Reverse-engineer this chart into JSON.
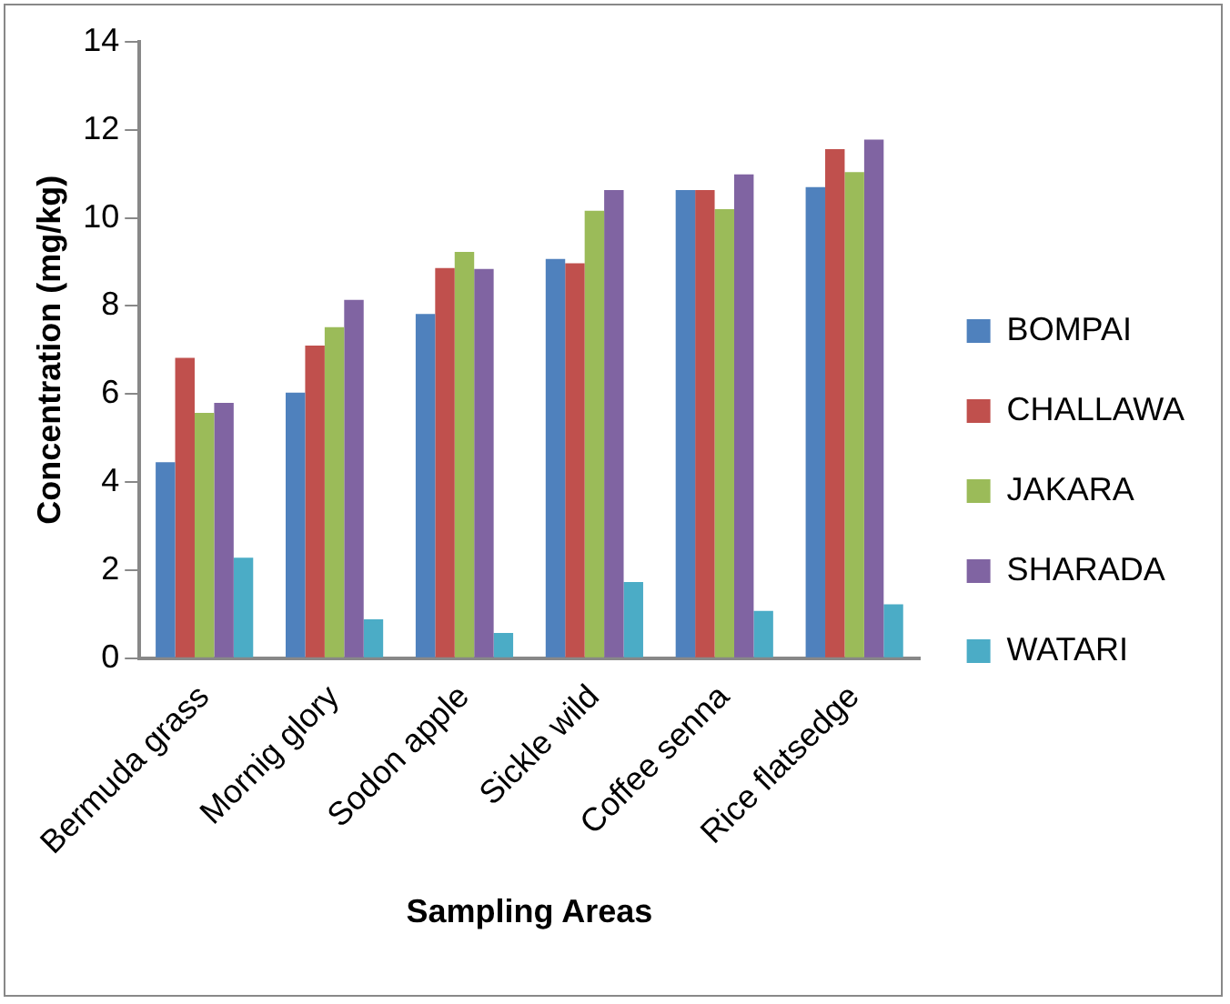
{
  "chart_data": {
    "type": "bar",
    "xlabel": "Sampling Areas",
    "ylabel": "Concentration (mg/kg)",
    "categories": [
      "Bermuda grass",
      "Mornig glory",
      "Sodon apple",
      "Sickle wild",
      "Coffee senna",
      "Rice flatsedge"
    ],
    "series": [
      {
        "name": "BOMPAI",
        "color": "#4f81bd",
        "values": [
          4.45,
          6.03,
          7.82,
          9.07,
          10.63,
          10.7
        ]
      },
      {
        "name": "CHALLAWA",
        "color": "#c0504d",
        "values": [
          6.82,
          7.1,
          8.86,
          8.97,
          10.63,
          11.56
        ]
      },
      {
        "name": "JAKARA",
        "color": "#9bbb59",
        "values": [
          5.57,
          7.52,
          9.23,
          10.16,
          10.2,
          11.04
        ]
      },
      {
        "name": "SHARADA",
        "color": "#8064a2",
        "values": [
          5.8,
          8.14,
          8.84,
          10.63,
          10.99,
          11.78
        ]
      },
      {
        "name": "WATARI",
        "color": "#4bacc6",
        "values": [
          2.28,
          0.88,
          0.57,
          1.73,
          1.07,
          1.22
        ]
      }
    ],
    "ylim": [
      0,
      14
    ],
    "yticks": [
      0,
      2,
      4,
      6,
      8,
      10,
      12,
      14
    ],
    "grid": false,
    "legend": "right"
  }
}
